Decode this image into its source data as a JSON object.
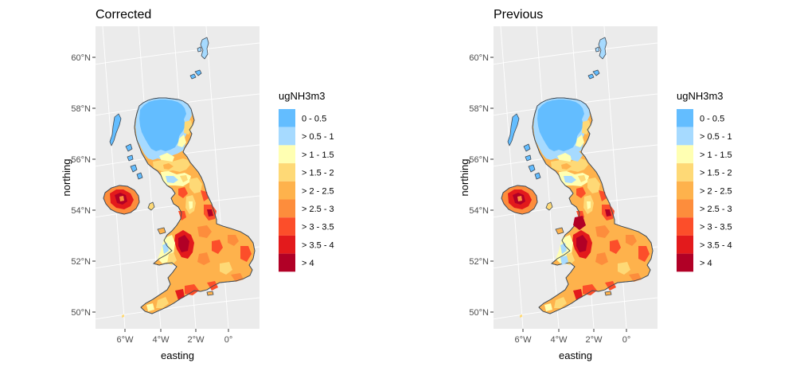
{
  "legend": {
    "title": "ugNH3m3",
    "classes": [
      {
        "label": "0 - 0.5",
        "color": "#63BDFF"
      },
      {
        "label": "> 0.5 - 1",
        "color": "#A6DAFF"
      },
      {
        "label": "> 1 - 1.5",
        "color": "#FFFFB2"
      },
      {
        "label": "> 1.5 - 2",
        "color": "#FED976"
      },
      {
        "label": "> 2 - 2.5",
        "color": "#FEB24C"
      },
      {
        "label": "> 2.5 - 3",
        "color": "#FD8D3C"
      },
      {
        "label": "> 3 - 3.5",
        "color": "#FC4E2A"
      },
      {
        "label": "> 3.5 - 4",
        "color": "#E31A1C"
      },
      {
        "label": "> 4",
        "color": "#B10026"
      }
    ]
  },
  "axes": {
    "xlabel": "easting",
    "ylabel": "northing",
    "xticks": [
      "6°W",
      "4°W",
      "2°W",
      "0°"
    ],
    "yticks": [
      "60°N",
      "58°N",
      "56°N",
      "54°N",
      "52°N",
      "50°N"
    ]
  },
  "panels": [
    {
      "title": "Corrected"
    },
    {
      "title": "Previous"
    }
  ],
  "colors": {
    "panel_bg": "#EBEBEB",
    "grid": "#FFFFFF",
    "outline": "#3F4A55"
  }
}
